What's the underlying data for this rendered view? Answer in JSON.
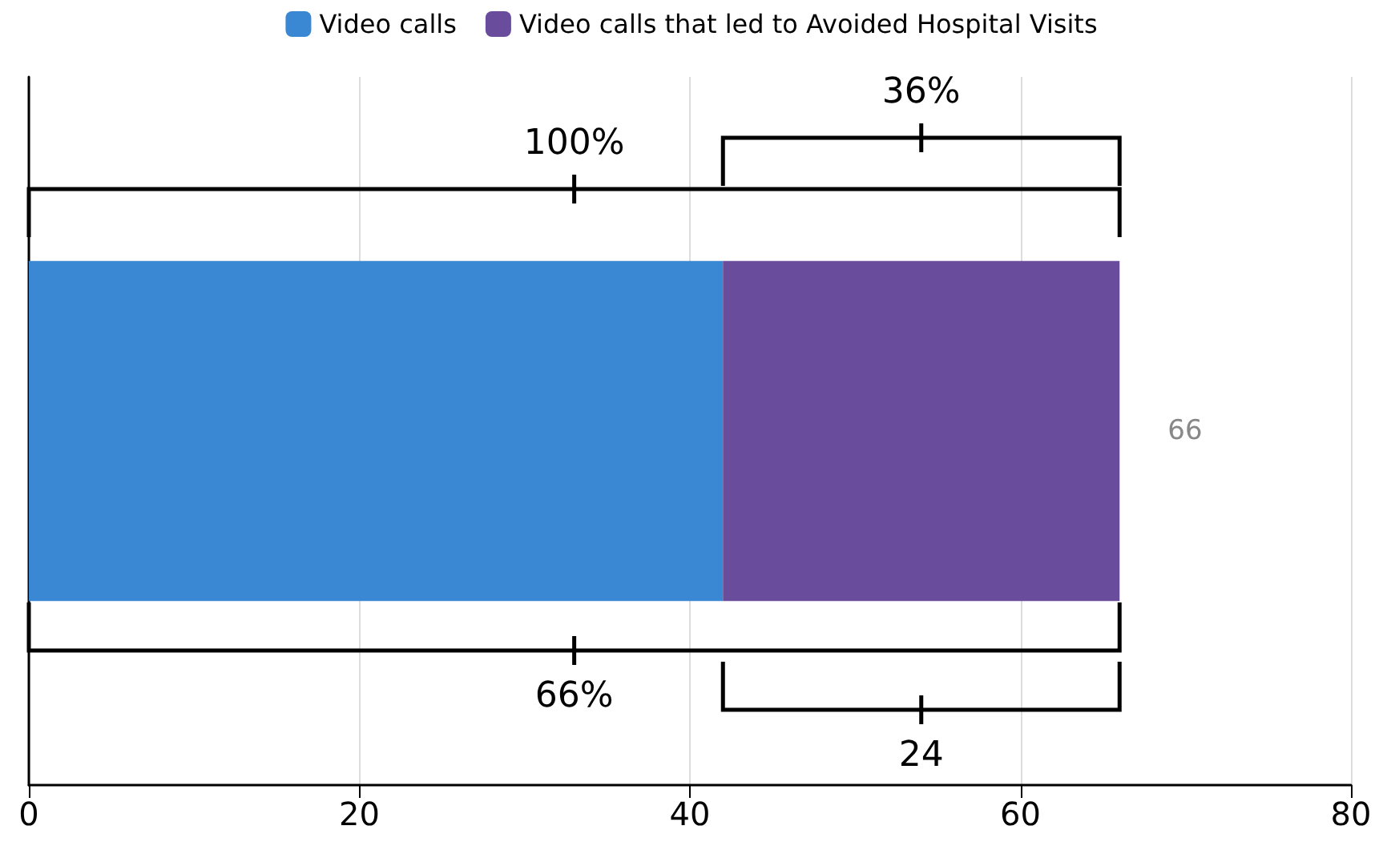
{
  "chart_data": {
    "type": "bar",
    "orientation": "horizontal",
    "stacked": true,
    "categories": [
      null
    ],
    "series": [
      {
        "name": "Video calls",
        "color": "#3a87d4",
        "values": [
          42
        ]
      },
      {
        "name": "Video calls that led to Avoided Hospital Visits",
        "color": "#6a4c9c",
        "values": [
          24
        ]
      }
    ],
    "totals": [
      "66"
    ],
    "xlim": [
      0,
      80
    ],
    "xticks": [
      0,
      20,
      40,
      60,
      80
    ],
    "grid": "x",
    "legend": "top",
    "annotations": [
      "36%",
      "100%",
      "66%",
      "24"
    ]
  }
}
